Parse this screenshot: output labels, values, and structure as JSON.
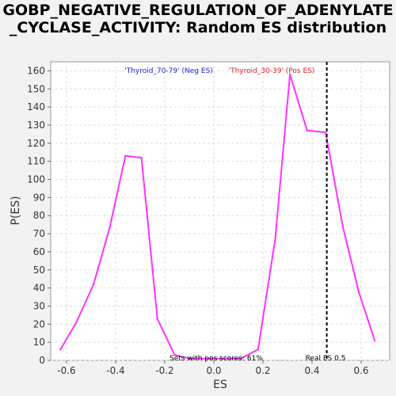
{
  "chart_data": {
    "type": "line",
    "title": "GOBP_NEGATIVE_REGULATION_OF_ADENYLATE_CYCLASE_ACTIVITY: Random ES distribution",
    "xlabel": "ES",
    "ylabel": "P(ES)",
    "xlim": [
      -0.7,
      0.72
    ],
    "ylim": [
      0,
      165
    ],
    "xticks": [
      -0.6,
      -0.4,
      -0.2,
      0.0,
      0.2,
      0.4,
      0.6
    ],
    "xtick_labels": [
      "-0.6",
      "-0.4",
      "-0.2",
      "0.0",
      "0.2",
      "0.4",
      "0.6"
    ],
    "yticks": [
      0,
      10,
      20,
      30,
      40,
      50,
      60,
      70,
      80,
      90,
      100,
      110,
      120,
      130,
      140,
      150,
      160
    ],
    "grid": true,
    "series": [
      {
        "color": "#ff33ff",
        "x": [
          -0.625,
          -0.56,
          -0.49,
          -0.425,
          -0.36,
          -0.295,
          -0.23,
          -0.16,
          -0.1,
          0.11,
          0.18,
          0.25,
          0.31,
          0.38,
          0.455,
          0.525,
          0.59,
          0.655
        ],
        "y": [
          6,
          21,
          42,
          73,
          113,
          112,
          23,
          3,
          1,
          1,
          6,
          67,
          158,
          127,
          126,
          74,
          38,
          11
        ]
      }
    ],
    "real_es": 0.46,
    "annotations": {
      "neg_label": "'Thyroid_70-79' (Neg ES)",
      "pos_label": "'Thyroid_30-39' (Pos ES)",
      "sets_text": "Sets with pos scores: 61%",
      "real_es_text": "Real ES 0.5"
    },
    "colors": {
      "neg_label": "#2222cc",
      "pos_label": "#dd2222",
      "real_es_line": "#000000"
    }
  }
}
